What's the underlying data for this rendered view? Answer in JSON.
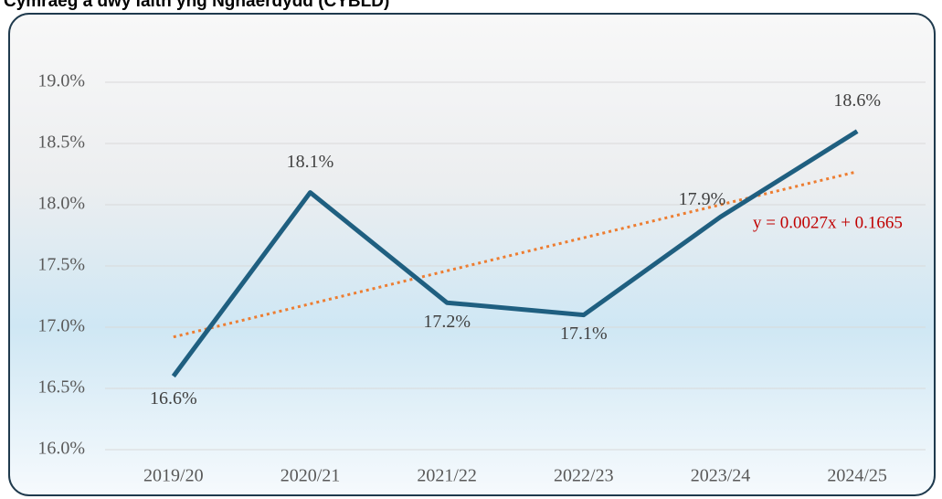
{
  "chart_data": {
    "type": "line",
    "title": "Cymraeg a dwy iaith yng Nghaerdydd (CYBLD)",
    "categories": [
      "2019/20",
      "2020/21",
      "2021/22",
      "2022/23",
      "2023/24",
      "2024/25"
    ],
    "series": [
      {
        "color": "#1f5f80",
        "values": [
          16.6,
          18.1,
          17.2,
          17.1,
          17.9,
          18.6
        ],
        "value_labels": [
          "16.6%",
          "18.1%",
          "17.2%",
          "17.1%",
          "17.9%",
          "18.6%"
        ]
      }
    ],
    "trendline": {
      "color": "#ed7d31",
      "values": [
        16.92,
        17.19,
        17.46,
        17.73,
        18.0,
        18.27
      ]
    },
    "annotations": [
      "y = 0.0027x + 0.1665"
    ],
    "ylim": [
      16.0,
      19.0
    ],
    "yticks": [
      {
        "value": 16.0,
        "label": "16.0%"
      },
      {
        "value": 16.5,
        "label": "16.5%"
      },
      {
        "value": 17.0,
        "label": "17.0%"
      },
      {
        "value": 17.5,
        "label": "17.5%"
      },
      {
        "value": 18.0,
        "label": "18.0%"
      },
      {
        "value": 18.5,
        "label": "18.5%"
      },
      {
        "value": 19.0,
        "label": "19.0%"
      }
    ],
    "grid": true
  }
}
